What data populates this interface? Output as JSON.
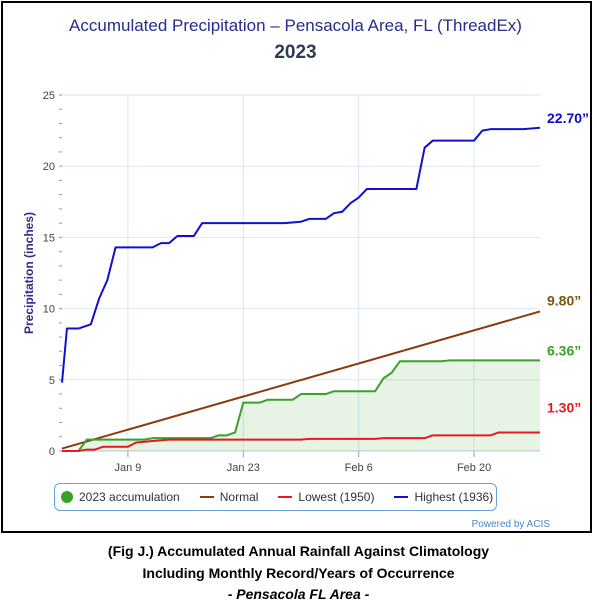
{
  "header": {
    "title": "Accumulated Precipitation – Pensacola Area, FL (ThreadEx)",
    "subtitle": "2023"
  },
  "legend": {
    "items": [
      {
        "label": "2023 accumulation",
        "color": "#3aa028",
        "kind": "dot"
      },
      {
        "label": "Normal",
        "color": "#8b3a0f",
        "kind": "line"
      },
      {
        "label": "Lowest (1950)",
        "color": "#e41a1c",
        "kind": "line"
      },
      {
        "label": "Highest (1936)",
        "color": "#1010d0",
        "kind": "line"
      }
    ]
  },
  "powered_by": "Powered by ACIS",
  "caption": {
    "line1": "(Fig J.) Accumulated Annual Rainfall Against  Climatology",
    "line2": "Including Monthly Record/Years of Occurrence",
    "line3": "- Pensacola FL Area -"
  },
  "chart_data": {
    "type": "line",
    "title": "Accumulated Precipitation – Pensacola Area, FL (ThreadEx)",
    "subtitle": "2023",
    "ylabel": "Precipitation (inches)",
    "xlabel": "",
    "ylim": [
      0,
      25
    ],
    "yticks": [
      0,
      5,
      10,
      15,
      20,
      25
    ],
    "xlim_day": [
      1,
      59
    ],
    "xticks": [
      {
        "day": 9,
        "label": "Jan 9"
      },
      {
        "day": 23,
        "label": "Jan 23"
      },
      {
        "day": 37,
        "label": "Feb 6"
      },
      {
        "day": 51,
        "label": "Feb 20"
      }
    ],
    "grid": true,
    "legend_position": "bottom",
    "series": [
      {
        "name": "Highest (1936)",
        "color": "#1010d0",
        "end_label": "22.70”",
        "points": [
          [
            1,
            4.8
          ],
          [
            1.6,
            8.6
          ],
          [
            3,
            8.6
          ],
          [
            4.5,
            8.9
          ],
          [
            5.5,
            10.7
          ],
          [
            6.5,
            12.0
          ],
          [
            7.5,
            14.3
          ],
          [
            12,
            14.3
          ],
          [
            13,
            14.6
          ],
          [
            14,
            14.6
          ],
          [
            15,
            15.1
          ],
          [
            17,
            15.1
          ],
          [
            18,
            16.0
          ],
          [
            28,
            16.0
          ],
          [
            30,
            16.1
          ],
          [
            31,
            16.3
          ],
          [
            33,
            16.3
          ],
          [
            34,
            16.7
          ],
          [
            35,
            16.8
          ],
          [
            36,
            17.4
          ],
          [
            37,
            17.8
          ],
          [
            38,
            18.4
          ],
          [
            44,
            18.4
          ],
          [
            45,
            21.3
          ],
          [
            46,
            21.8
          ],
          [
            51,
            21.8
          ],
          [
            52,
            22.5
          ],
          [
            53,
            22.6
          ],
          [
            57,
            22.6
          ],
          [
            59,
            22.7
          ]
        ]
      },
      {
        "name": "Normal",
        "color": "#8b3a0f",
        "end_label": "9.80”",
        "points": [
          [
            1,
            0.17
          ],
          [
            59,
            9.8
          ]
        ]
      },
      {
        "name": "2023 accumulation",
        "color": "#3aa028",
        "end_label": "6.36”",
        "points": [
          [
            1,
            0.0
          ],
          [
            3,
            0.0
          ],
          [
            4,
            0.8
          ],
          [
            11,
            0.8
          ],
          [
            12,
            0.9
          ],
          [
            19,
            0.9
          ],
          [
            20,
            1.1
          ],
          [
            21,
            1.1
          ],
          [
            22,
            1.3
          ],
          [
            23,
            3.4
          ],
          [
            25,
            3.4
          ],
          [
            26,
            3.6
          ],
          [
            29,
            3.6
          ],
          [
            30,
            4.0
          ],
          [
            33,
            4.0
          ],
          [
            34,
            4.2
          ],
          [
            39,
            4.2
          ],
          [
            40,
            5.1
          ],
          [
            41,
            5.5
          ],
          [
            42,
            6.3
          ],
          [
            47,
            6.3
          ],
          [
            48,
            6.36
          ],
          [
            59,
            6.36
          ]
        ]
      },
      {
        "name": "Lowest (1950)",
        "color": "#e41a1c",
        "end_label": "1.30”",
        "points": [
          [
            1,
            0.0
          ],
          [
            3,
            0.0
          ],
          [
            4,
            0.1
          ],
          [
            5,
            0.1
          ],
          [
            6,
            0.3
          ],
          [
            9,
            0.3
          ],
          [
            10,
            0.6
          ],
          [
            12,
            0.7
          ],
          [
            14,
            0.8
          ],
          [
            30,
            0.8
          ],
          [
            31,
            0.85
          ],
          [
            39,
            0.85
          ],
          [
            40,
            0.9
          ],
          [
            45,
            0.9
          ],
          [
            46,
            1.1
          ],
          [
            53,
            1.1
          ],
          [
            54,
            1.3
          ],
          [
            59,
            1.3
          ]
        ]
      }
    ]
  }
}
